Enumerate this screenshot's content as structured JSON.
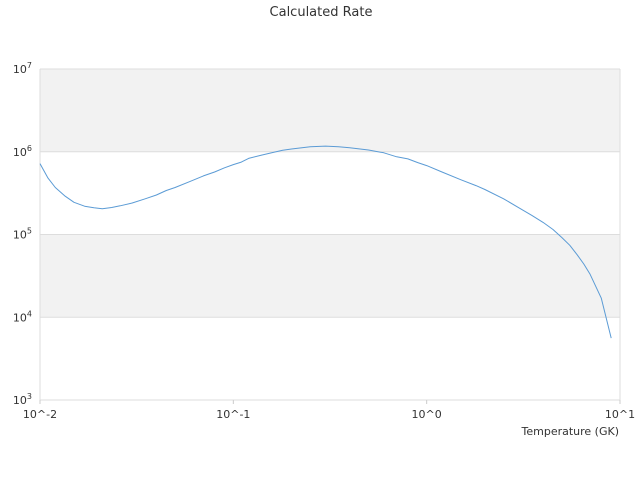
{
  "chart_data": {
    "type": "line",
    "title": "Calculated Rate",
    "xlabel": "Temperature (GK)",
    "ylabel": "",
    "x_scale": "log",
    "y_scale": "log",
    "xlim": [
      0.01,
      10
    ],
    "ylim": [
      1000,
      10000000
    ],
    "x_tick_values": [
      0.01,
      0.1,
      1,
      10
    ],
    "x_tick_labels": [
      "10^-2",
      "10^-1",
      "10^0",
      "10^1"
    ],
    "y_tick_values": [
      1000,
      10000,
      100000,
      1000000,
      10000000
    ],
    "y_tick_labels": [
      {
        "base": "10",
        "exp": "3"
      },
      {
        "base": "10",
        "exp": "4"
      },
      {
        "base": "10",
        "exp": "5"
      },
      {
        "base": "10",
        "exp": "6"
      },
      {
        "base": "10",
        "exp": "7"
      }
    ],
    "grid": "horizontal alternating bands",
    "band_color": "#f2f2f2",
    "series": [
      {
        "color": "#5b9bd5",
        "x": [
          0.01,
          0.011,
          0.012,
          0.0135,
          0.015,
          0.017,
          0.019,
          0.021,
          0.0235,
          0.026,
          0.03,
          0.035,
          0.04,
          0.045,
          0.05,
          0.06,
          0.07,
          0.08,
          0.09,
          0.1,
          0.11,
          0.12,
          0.14,
          0.16,
          0.18,
          0.2,
          0.25,
          0.3,
          0.35,
          0.4,
          0.5,
          0.6,
          0.7,
          0.8,
          0.9,
          1.0,
          1.2,
          1.5,
          1.8,
          2.0,
          2.5,
          3.0,
          3.5,
          4.0,
          4.5,
          5.0,
          5.5,
          6.0,
          6.5,
          7.0,
          8.0,
          9.0
        ],
        "y": [
          720000,
          480000,
          370000,
          290000,
          245000,
          220000,
          210000,
          205000,
          212000,
          222000,
          240000,
          270000,
          300000,
          340000,
          370000,
          440000,
          510000,
          570000,
          640000,
          700000,
          750000,
          830000,
          910000,
          980000,
          1040000,
          1080000,
          1150000,
          1170000,
          1150000,
          1120000,
          1050000,
          970000,
          870000,
          820000,
          740000,
          680000,
          570000,
          460000,
          390000,
          350000,
          270000,
          210000,
          170000,
          140000,
          115000,
          92000,
          74000,
          57000,
          44000,
          33000,
          17000,
          5600
        ]
      }
    ]
  }
}
